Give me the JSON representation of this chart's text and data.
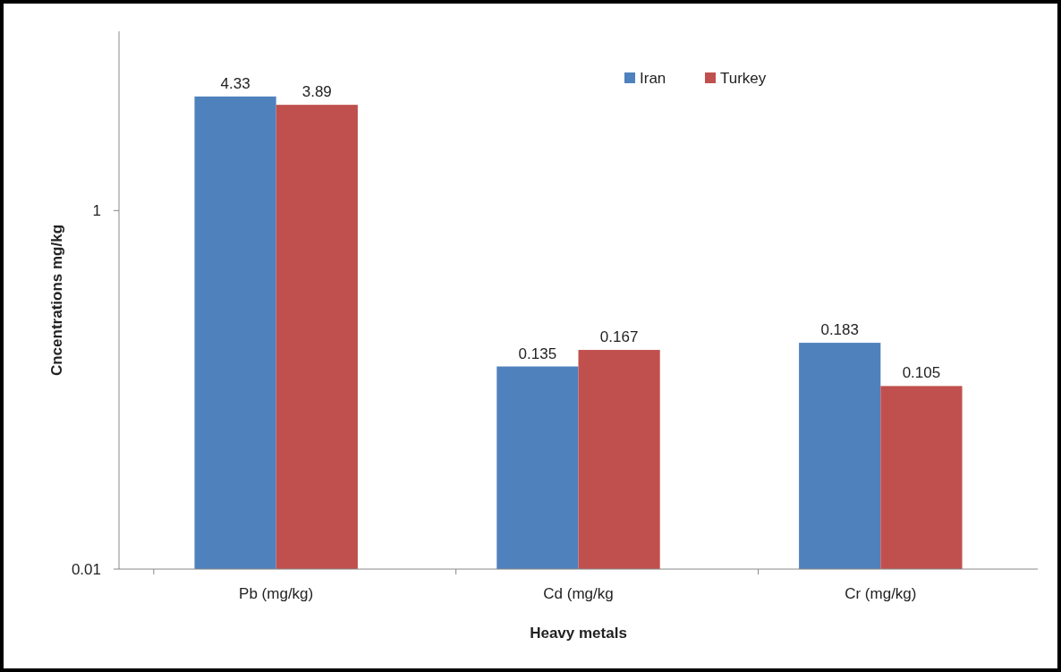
{
  "chart_data": {
    "type": "bar",
    "xlabel": "Heavy metals",
    "ylabel": "Cncentrations mg/kg",
    "categories": [
      "Pb (mg/kg)",
      "Cd (mg/kg",
      "Cr (mg/kg)"
    ],
    "series": [
      {
        "name": "Iran",
        "color": "#4f81bd",
        "values": [
          4.33,
          0.135,
          0.183
        ]
      },
      {
        "name": "Turkey",
        "color": "#c0504d",
        "values": [
          3.89,
          0.167,
          0.105
        ]
      }
    ],
    "log": true,
    "ylim": [
      0.01,
      10
    ],
    "yticks": [
      0.01,
      1
    ],
    "grid": false,
    "legend": "top right",
    "data_labels": true
  }
}
